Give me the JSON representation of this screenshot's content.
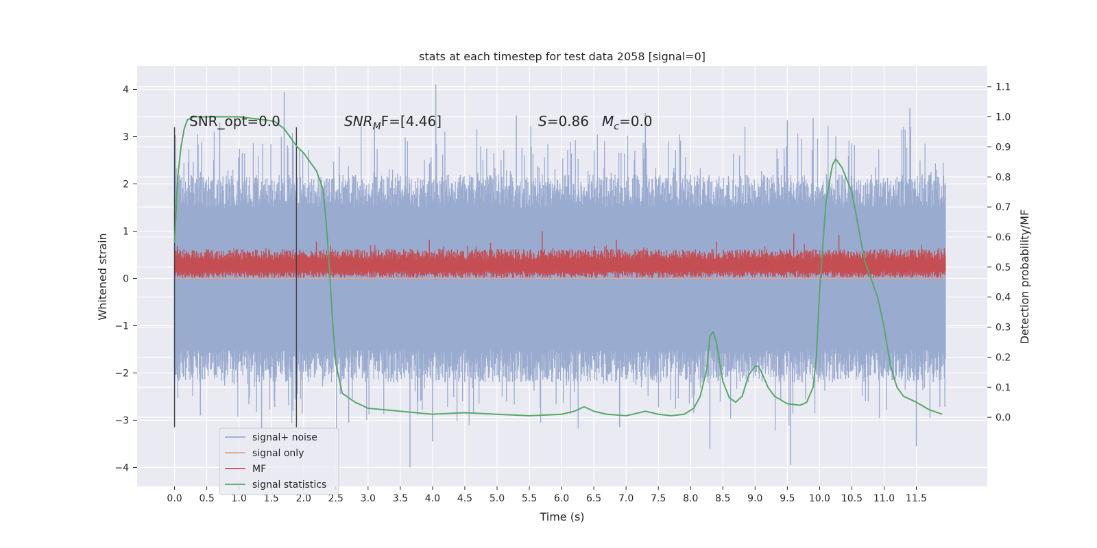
{
  "chart_data": {
    "type": "line",
    "title": "stats at each timestep for test data 2058 [signal=0]",
    "xlabel": "Time (s)",
    "ylabel": "Whitened strain",
    "y2label": "Detection probability/MF",
    "xlim": [
      -0.58,
      12.6
    ],
    "ylim": [
      -4.4,
      4.5
    ],
    "y2lim": [
      -0.23,
      1.17
    ],
    "xticks": [
      0.0,
      0.5,
      1.0,
      1.5,
      2.0,
      2.5,
      3.0,
      3.5,
      4.0,
      4.5,
      5.0,
      5.5,
      6.0,
      6.5,
      7.0,
      7.5,
      8.0,
      8.5,
      9.0,
      9.5,
      10.0,
      10.5,
      11.0,
      11.5
    ],
    "xtick_labels": [
      "0.0",
      "0.5",
      "1.0",
      "1.5",
      "2.0",
      "2.5",
      "3.0",
      "3.5",
      "4.0",
      "4.5",
      "5.0",
      "5.5",
      "6.0",
      "6.5",
      "7.0",
      "7.5",
      "8.0",
      "8.5",
      "9.0",
      "9.5",
      "10.0",
      "10.5",
      "11.0",
      "11.5"
    ],
    "yticks": [
      -4,
      -3,
      -2,
      -1,
      0,
      1,
      2,
      3,
      4
    ],
    "ytick_labels": [
      "−4",
      "−3",
      "−2",
      "−1",
      "0",
      "1",
      "2",
      "3",
      "4"
    ],
    "y2ticks": [
      0.0,
      0.1,
      0.2,
      0.3,
      0.4,
      0.5,
      0.6,
      0.7,
      0.8,
      0.9,
      1.0,
      1.1
    ],
    "y2tick_labels": [
      "0.0",
      "0.1",
      "0.2",
      "0.3",
      "0.4",
      "0.5",
      "0.6",
      "0.7",
      "0.8",
      "0.9",
      "1.0",
      "1.1"
    ],
    "grid": true,
    "legend_position": "lower-left",
    "colors": {
      "background": "#eaeaf2",
      "grid": "#ffffff",
      "signal_noise": "#9aabd0",
      "signal_only": "#e5a58b",
      "mf": "#c44e52",
      "stat": "#55a868",
      "vline": "#444444"
    },
    "series": [
      {
        "name": "signal+ noise",
        "kind": "noise-band",
        "x_range": [
          0.0,
          11.95
        ],
        "typical_range": [
          -1.5,
          1.5
        ],
        "max_spikes": [
          [
            1.7,
            3.95
          ],
          [
            4.05,
            4.1
          ],
          [
            11.4,
            3.6
          ],
          [
            9.5,
            3.35
          ],
          [
            7.3,
            3.5
          ],
          [
            5.3,
            3.45
          ],
          [
            0.7,
            3.3
          ],
          [
            3.1,
            3.25
          ],
          [
            9.9,
            3.4
          ]
        ],
        "min_spikes": [
          [
            3.65,
            -4.0
          ],
          [
            9.55,
            -3.95
          ],
          [
            4.0,
            -3.45
          ],
          [
            11.5,
            -3.55
          ],
          [
            8.3,
            -3.6
          ],
          [
            6.9,
            -3.15
          ],
          [
            0.4,
            -2.9
          ],
          [
            2.7,
            -3.05
          ],
          [
            1.35,
            -3.2
          ]
        ]
      },
      {
        "name": "signal only",
        "kind": "line",
        "x": [
          0.0,
          11.95
        ],
        "y": [
          0.0,
          0.0
        ]
      },
      {
        "name": "MF",
        "kind": "mf-band",
        "x_range": [
          0.0,
          11.95
        ],
        "typical_range": [
          0.05,
          0.6
        ],
        "max_spikes": [
          [
            5.7,
            1.0
          ],
          [
            2.2,
            0.78
          ],
          [
            3.95,
            0.82
          ],
          [
            6.85,
            0.82
          ],
          [
            9.6,
            0.95
          ],
          [
            10.3,
            0.92
          ],
          [
            4.9,
            0.75
          ],
          [
            8.4,
            0.78
          ]
        ]
      },
      {
        "name": "signal statistics",
        "kind": "line",
        "axis": "right",
        "x": [
          0.0,
          0.05,
          0.1,
          0.15,
          0.2,
          0.3,
          0.5,
          1.0,
          1.4,
          1.55,
          1.7,
          1.8,
          1.9,
          2.0,
          2.1,
          2.2,
          2.3,
          2.35,
          2.4,
          2.45,
          2.5,
          2.6,
          2.8,
          3.0,
          3.5,
          4.0,
          4.5,
          5.0,
          5.5,
          6.0,
          6.2,
          6.35,
          6.5,
          6.7,
          7.0,
          7.2,
          7.3,
          7.5,
          7.7,
          7.9,
          8.05,
          8.15,
          8.25,
          8.3,
          8.35,
          8.4,
          8.5,
          8.6,
          8.7,
          8.8,
          8.9,
          9.0,
          9.05,
          9.1,
          9.2,
          9.3,
          9.5,
          9.7,
          9.8,
          9.9,
          9.95,
          10.0,
          10.1,
          10.2,
          10.25,
          10.35,
          10.5,
          10.7,
          10.9,
          11.0,
          11.1,
          11.2,
          11.3,
          11.5,
          11.7,
          11.9
        ],
        "y": [
          0.58,
          0.8,
          0.9,
          0.96,
          0.99,
          1.0,
          1.0,
          1.0,
          0.99,
          0.985,
          0.96,
          0.93,
          0.9,
          0.88,
          0.85,
          0.82,
          0.76,
          0.65,
          0.5,
          0.32,
          0.18,
          0.08,
          0.05,
          0.03,
          0.02,
          0.01,
          0.015,
          0.01,
          0.005,
          0.01,
          0.02,
          0.035,
          0.02,
          0.01,
          0.005,
          0.015,
          0.02,
          0.01,
          0.005,
          0.01,
          0.03,
          0.07,
          0.16,
          0.27,
          0.285,
          0.25,
          0.12,
          0.065,
          0.05,
          0.07,
          0.14,
          0.17,
          0.17,
          0.15,
          0.1,
          0.07,
          0.045,
          0.04,
          0.05,
          0.1,
          0.2,
          0.42,
          0.72,
          0.84,
          0.86,
          0.83,
          0.75,
          0.52,
          0.4,
          0.3,
          0.17,
          0.1,
          0.07,
          0.05,
          0.025,
          0.01
        ]
      }
    ],
    "vlines": [
      0.0,
      1.89
    ],
    "vline_range": [
      -3.15,
      3.2
    ]
  },
  "annotations": {
    "snr_opt": "SNR_opt=0.0",
    "snr_mf_main": "SNR",
    "snr_mf_sub": "M",
    "snr_mf_rest": "F=[4.46]",
    "s_italic": "S",
    "s_value": "=0.86",
    "mc_italic": "M",
    "mc_sub": "c",
    "mc_value": "=0.0"
  },
  "legend": {
    "items": [
      "signal+ noise",
      "signal only",
      "MF",
      "signal statistics"
    ]
  }
}
